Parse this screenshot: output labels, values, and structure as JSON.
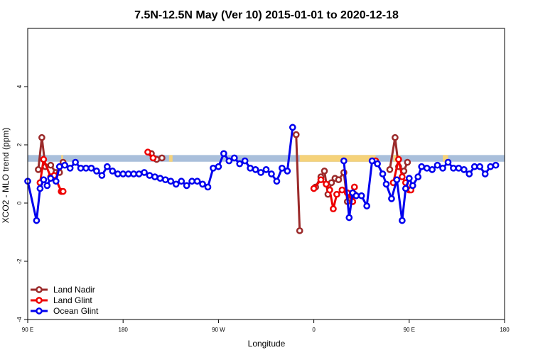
{
  "chart_data": {
    "type": "line",
    "title": "7.5N-12.5N May (Ver 10)   2015-01-01 to 2020-12-18",
    "xlabel": "Longitude",
    "ylabel": "XCO2 - MLO trend (ppm)",
    "xlim": [
      -90,
      180
    ],
    "ylim": [
      -4,
      6
    ],
    "x_ticks": [
      {
        "value": -90,
        "label": "90 E"
      },
      {
        "value": -36,
        "label": "180"
      },
      {
        "value": 18,
        "label": "90 W"
      },
      {
        "value": 72,
        "label": "0"
      },
      {
        "value": 126,
        "label": "90 E"
      },
      {
        "value": 180,
        "label": "180"
      }
    ],
    "y_ticks": [
      {
        "value": -4,
        "label": "-4"
      },
      {
        "value": -2,
        "label": "-2"
      },
      {
        "value": 0,
        "label": "0"
      },
      {
        "value": 2,
        "label": "2"
      },
      {
        "value": 4,
        "label": "4"
      }
    ],
    "band": {
      "y_low": 1.42,
      "y_high": 1.65,
      "color": "#a9bfdb",
      "land_color": "#f5d27a",
      "land_spans": [
        [
          -71,
          -70
        ],
        [
          -10,
          -8
        ],
        [
          64,
          107
        ],
        [
          117,
          121
        ],
        [
          145,
          148
        ]
      ]
    },
    "legend_position": "bottom-left",
    "series": [
      {
        "name": "Land Nadir",
        "color": "#9b2a2a",
        "points": [
          [
            -84,
            1.15
          ],
          [
            -82,
            2.25
          ],
          [
            -80,
            1.25
          ],
          [
            -77,
            1.3
          ],
          [
            -74,
            1.05
          ],
          [
            -72,
            1.05
          ],
          [
            -70,
            1.4
          ],
          null,
          [
            -20,
            1.7
          ],
          [
            -17,
            1.5
          ],
          [
            -14,
            1.55
          ],
          null,
          [
            62,
            2.35
          ],
          [
            64,
            -0.95
          ],
          null,
          [
            73,
            0.55
          ],
          [
            76,
            0.9
          ],
          [
            78,
            1.1
          ],
          [
            80,
            0.3
          ],
          [
            82,
            0.7
          ],
          [
            84,
            0.85
          ],
          [
            86,
            0.8
          ],
          [
            89,
            1.05
          ],
          [
            91,
            0.05
          ],
          [
            93,
            0.15
          ],
          [
            95,
            0.3
          ],
          null,
          [
            115,
            1.15
          ],
          [
            118,
            2.25
          ],
          [
            120,
            1.25
          ],
          [
            123,
            1.1
          ],
          [
            125,
            1.4
          ]
        ]
      },
      {
        "name": "Land Glint",
        "color": "#ee0000",
        "points": [
          [
            -83,
            0.7
          ],
          [
            -81,
            1.5
          ],
          [
            -77,
            0.9
          ],
          [
            -75,
            0.95
          ],
          [
            -71,
            0.4
          ],
          [
            -70,
            0.4
          ],
          null,
          [
            -22,
            1.75
          ],
          [
            -19,
            1.55
          ],
          null,
          [
            72,
            0.5
          ],
          [
            76,
            0.8
          ],
          [
            79,
            0.65
          ],
          [
            81,
            0.45
          ],
          [
            83,
            -0.2
          ],
          [
            85,
            0.3
          ],
          [
            88,
            0.45
          ],
          [
            91,
            0.35
          ],
          [
            94,
            0.05
          ],
          [
            95,
            0.55
          ],
          null,
          [
            107,
            1.45
          ],
          null,
          [
            117,
            0.7
          ],
          [
            120,
            1.5
          ],
          [
            122,
            0.9
          ],
          [
            124,
            0.7
          ],
          [
            126,
            0.45
          ],
          [
            127,
            0.45
          ]
        ]
      },
      {
        "name": "Ocean Glint",
        "color": "#0000ee",
        "points": [
          [
            -90,
            0.75
          ],
          [
            -85,
            -0.6
          ],
          [
            -83,
            0.5
          ],
          [
            -81,
            0.8
          ],
          [
            -79,
            0.6
          ],
          [
            -77,
            0.85
          ],
          [
            -74,
            0.75
          ],
          [
            -72,
            1.25
          ],
          [
            -69,
            1.3
          ],
          [
            -66,
            1.2
          ],
          [
            -63,
            1.4
          ],
          [
            -60,
            1.2
          ],
          [
            -57,
            1.2
          ],
          [
            -54,
            1.2
          ],
          [
            -51,
            1.1
          ],
          [
            -48,
            0.95
          ],
          [
            -45,
            1.25
          ],
          [
            -42,
            1.1
          ],
          [
            -39,
            1.0
          ],
          [
            -36,
            1.0
          ],
          [
            -33,
            1.0
          ],
          [
            -30,
            1.0
          ],
          [
            -27,
            1.0
          ],
          [
            -24,
            1.05
          ],
          [
            -21,
            0.95
          ],
          [
            -18,
            0.9
          ],
          [
            -15,
            0.85
          ],
          [
            -12,
            0.8
          ],
          [
            -9,
            0.75
          ],
          [
            -6,
            0.65
          ],
          [
            -3,
            0.75
          ],
          [
            0,
            0.6
          ],
          [
            3,
            0.75
          ],
          [
            6,
            0.75
          ],
          [
            9,
            0.65
          ],
          [
            12,
            0.55
          ],
          [
            15,
            1.2
          ],
          [
            18,
            1.25
          ],
          [
            21,
            1.7
          ],
          [
            24,
            1.45
          ],
          [
            27,
            1.55
          ],
          [
            30,
            1.35
          ],
          [
            33,
            1.45
          ],
          [
            36,
            1.2
          ],
          [
            39,
            1.15
          ],
          [
            42,
            1.05
          ],
          [
            45,
            1.15
          ],
          [
            48,
            1.0
          ],
          [
            51,
            0.75
          ],
          [
            54,
            1.2
          ],
          [
            57,
            1.1
          ],
          [
            60,
            2.6
          ],
          null,
          [
            89,
            1.45
          ],
          [
            92,
            -0.5
          ],
          [
            94,
            0.35
          ],
          [
            96,
            0.25
          ],
          [
            99,
            0.25
          ],
          [
            102,
            -0.1
          ],
          [
            105,
            1.45
          ],
          [
            108,
            1.35
          ],
          [
            111,
            1.0
          ],
          [
            113,
            0.65
          ],
          [
            116,
            0.15
          ],
          [
            119,
            0.8
          ],
          [
            122,
            -0.6
          ],
          [
            124,
            0.5
          ],
          [
            126,
            0.85
          ],
          [
            128,
            0.6
          ],
          [
            131,
            0.9
          ],
          [
            133,
            1.25
          ],
          [
            136,
            1.2
          ],
          [
            139,
            1.15
          ],
          [
            142,
            1.3
          ],
          [
            145,
            1.2
          ],
          [
            148,
            1.4
          ],
          [
            151,
            1.2
          ],
          [
            154,
            1.2
          ],
          [
            157,
            1.15
          ],
          [
            160,
            1.0
          ],
          [
            163,
            1.25
          ],
          [
            166,
            1.25
          ],
          [
            169,
            1.0
          ],
          [
            172,
            1.25
          ],
          [
            175,
            1.3
          ]
        ]
      }
    ]
  }
}
